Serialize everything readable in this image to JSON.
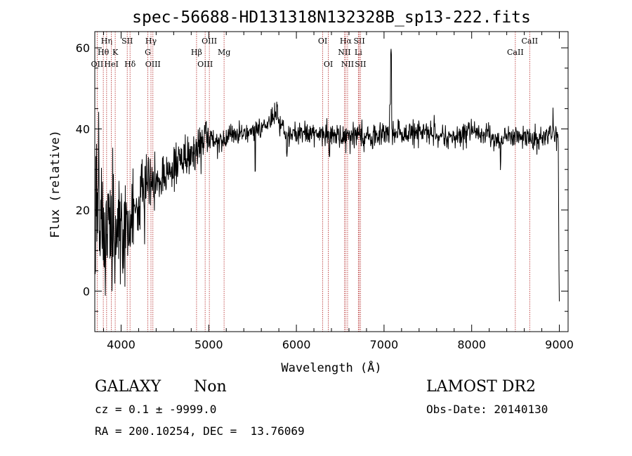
{
  "chart_data": {
    "type": "line",
    "title": "spec-56688-HD131318N132328B_sp13-222.fits",
    "xlabel": "Wavelength (Å)",
    "ylabel": "Flux (relative)",
    "xlim": [
      3700,
      9100
    ],
    "ylim": [
      -10,
      64
    ],
    "xticks": [
      4000,
      5000,
      6000,
      7000,
      8000,
      9000
    ],
    "yticks": [
      0,
      20,
      40,
      60
    ],
    "x_minor_step": 200,
    "y_minor_step": 5,
    "line_color": "#000000",
    "marker_color": "#b22222",
    "anchors": [
      [
        3700,
        14
      ],
      [
        3720,
        22
      ],
      [
        3760,
        18
      ],
      [
        3800,
        16
      ],
      [
        3850,
        15
      ],
      [
        3900,
        14
      ],
      [
        3950,
        15
      ],
      [
        4000,
        16
      ],
      [
        4050,
        15
      ],
      [
        4100,
        16
      ],
      [
        4150,
        17
      ],
      [
        4200,
        20
      ],
      [
        4250,
        24
      ],
      [
        4300,
        25
      ],
      [
        4350,
        26
      ],
      [
        4400,
        27
      ],
      [
        4450,
        27
      ],
      [
        4500,
        28
      ],
      [
        4550,
        29
      ],
      [
        4600,
        30
      ],
      [
        4650,
        31
      ],
      [
        4700,
        32
      ],
      [
        4750,
        33
      ],
      [
        4800,
        34
      ],
      [
        4850,
        35
      ],
      [
        4900,
        36
      ],
      [
        4950,
        37
      ],
      [
        5000,
        38
      ],
      [
        5100,
        37.5
      ],
      [
        5200,
        38
      ],
      [
        5300,
        38.5
      ],
      [
        5400,
        39
      ],
      [
        5500,
        39.5
      ],
      [
        5600,
        40.5
      ],
      [
        5700,
        42
      ],
      [
        5780,
        43
      ],
      [
        5850,
        40
      ],
      [
        5900,
        38.5
      ],
      [
        6000,
        39
      ],
      [
        6100,
        39
      ],
      [
        6200,
        38.5
      ],
      [
        6300,
        39
      ],
      [
        6400,
        38.5
      ],
      [
        6500,
        38
      ],
      [
        6600,
        38
      ],
      [
        6700,
        38.5
      ],
      [
        6800,
        38
      ],
      [
        6900,
        38
      ],
      [
        7000,
        39
      ],
      [
        7100,
        38.5
      ],
      [
        7200,
        39
      ],
      [
        7300,
        39
      ],
      [
        7400,
        39.5
      ],
      [
        7500,
        39
      ],
      [
        7600,
        38.5
      ],
      [
        7700,
        38
      ],
      [
        7800,
        38
      ],
      [
        7900,
        39
      ],
      [
        8000,
        39
      ],
      [
        8100,
        39
      ],
      [
        8200,
        38.5
      ],
      [
        8300,
        37
      ],
      [
        8400,
        38.5
      ],
      [
        8500,
        38
      ],
      [
        8600,
        38
      ],
      [
        8700,
        37.5
      ],
      [
        8800,
        37.5
      ],
      [
        8900,
        39
      ],
      [
        8960,
        38
      ],
      [
        8985,
        38
      ],
      [
        8990,
        33
      ],
      [
        8995,
        5
      ],
      [
        9000,
        0
      ]
    ],
    "features": [
      {
        "x": 5780,
        "dy": 3
      },
      {
        "x": 5530,
        "dy": -10
      },
      {
        "x": 5890,
        "dy": -5
      },
      {
        "x": 6375,
        "dy": -4
      },
      {
        "x": 6870,
        "dy": -3
      },
      {
        "x": 7080,
        "dy": 20
      },
      {
        "x": 7068,
        "dy": 8
      },
      {
        "x": 8330,
        "dy": -5
      },
      {
        "x": 8930,
        "dy": 4
      }
    ],
    "spectral_lines": [
      {
        "label": "OII",
        "x": 3727,
        "row": 3
      },
      {
        "label": "Hθ",
        "x": 3797,
        "row": 2
      },
      {
        "label": "Hη",
        "x": 3835,
        "row": 1
      },
      {
        "label": "HeI",
        "x": 3889,
        "row": 3
      },
      {
        "label": "K",
        "x": 3933,
        "row": 2
      },
      {
        "label": "SII",
        "x": 4070,
        "row": 1
      },
      {
        "label": "Hδ",
        "x": 4102,
        "row": 3
      },
      {
        "label": "Hγ",
        "x": 4341,
        "row": 1
      },
      {
        "label": "G",
        "x": 4305,
        "row": 2
      },
      {
        "label": "OIII",
        "x": 4363,
        "row": 3
      },
      {
        "label": "OIII",
        "x": 5007,
        "row": 1
      },
      {
        "label": "Hβ",
        "x": 4861,
        "row": 2
      },
      {
        "label": "OIII",
        "x": 4959,
        "row": 3
      },
      {
        "label": "Mg",
        "x": 5175,
        "row": 2
      },
      {
        "label": "OI",
        "x": 6300,
        "row": 1
      },
      {
        "label": "OI",
        "x": 6364,
        "row": 3
      },
      {
        "label": "Hα",
        "x": 6563,
        "row": 1
      },
      {
        "label": "NII",
        "x": 6548,
        "row": 2
      },
      {
        "label": "NII",
        "x": 6584,
        "row": 3
      },
      {
        "label": "SII",
        "x": 6717,
        "row": 1
      },
      {
        "label": "Li",
        "x": 6707,
        "row": 2
      },
      {
        "label": "SII",
        "x": 6731,
        "row": 3
      },
      {
        "label": "CaII",
        "x": 8662,
        "row": 1
      },
      {
        "label": "CaII",
        "x": 8498,
        "row": 2
      }
    ]
  },
  "info": {
    "class": "GALAXY",
    "subclass": "Non",
    "cz": "cz = 0.1 ± -9999.0",
    "coords": "RA = 200.10254, DEC =  13.76069",
    "survey": "LAMOST DR2",
    "obs_date": "Obs-Date: 20140130"
  }
}
